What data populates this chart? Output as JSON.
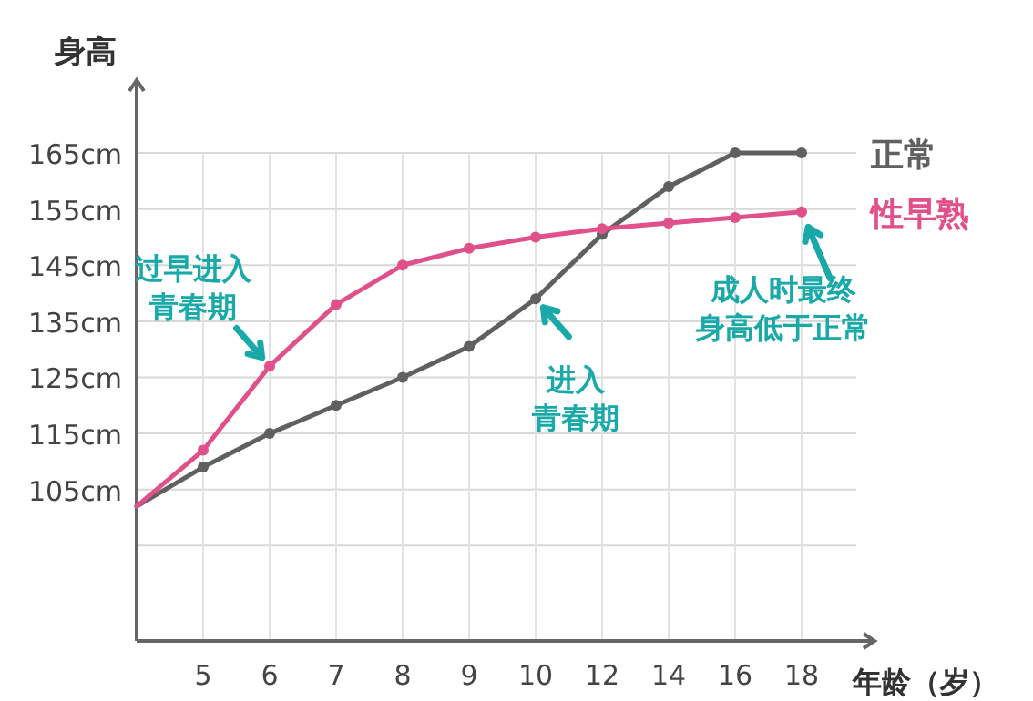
{
  "chart_data": {
    "type": "line",
    "ylabel": "身高",
    "xlabel": "年龄（岁）",
    "categories": [
      null,
      "5",
      "6",
      "7",
      "8",
      "9",
      "10",
      "12",
      "14",
      "16",
      "18"
    ],
    "series": [
      {
        "name": "正常",
        "color": "#606060",
        "values": [
          102,
          109,
          115,
          120,
          125,
          130.5,
          139,
          150.5,
          159,
          165,
          165
        ]
      },
      {
        "name": "性早熟",
        "color": "#e0508a",
        "values": [
          102,
          112,
          127,
          138,
          145,
          148,
          150,
          151.5,
          152.5,
          153.5,
          154.5
        ]
      }
    ],
    "ylim": [
      78,
      178
    ],
    "yticks": [
      {
        "value": 95,
        "label": null
      },
      {
        "value": 105,
        "label": "105cm"
      },
      {
        "value": 115,
        "label": "115cm"
      },
      {
        "value": 125,
        "label": "125cm"
      },
      {
        "value": 135,
        "label": "135cm"
      },
      {
        "value": 145,
        "label": "145cm"
      },
      {
        "value": 155,
        "label": "155cm"
      },
      {
        "value": 165,
        "label": "165cm"
      }
    ],
    "grid": true,
    "legend": false,
    "marker": "circle",
    "line_style": "solid",
    "annotations": [
      {
        "text": "过早进入青春期",
        "x": "6",
        "y": 127
      },
      {
        "text": "进入青春期",
        "x": "10",
        "y": 139
      },
      {
        "text": "成人时最终身高低于正常",
        "x": "18",
        "y": 154.5
      }
    ]
  }
}
